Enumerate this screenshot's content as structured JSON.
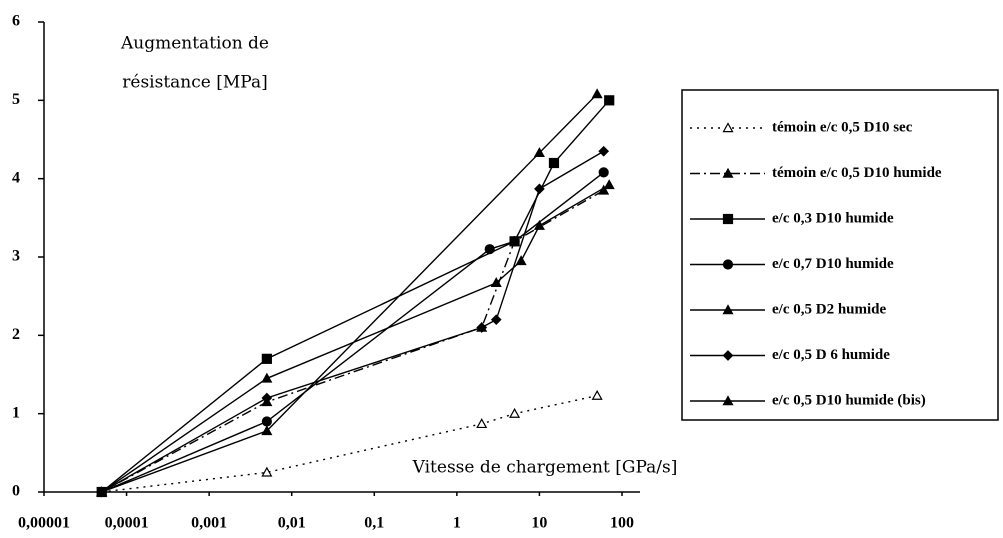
{
  "chart_data": {
    "type": "line",
    "ylabel": [
      "Augmentation de",
      "résistance [MPa]"
    ],
    "xlabel": "Vitesse de chargement [GPa/s]",
    "xscale": "log",
    "xlim": [
      1e-05,
      100
    ],
    "xticks": [
      {
        "value": 1e-05,
        "label": "0,00001"
      },
      {
        "value": 0.0001,
        "label": "0,0001"
      },
      {
        "value": 0.001,
        "label": "0,001"
      },
      {
        "value": 0.01,
        "label": "0,01"
      },
      {
        "value": 0.1,
        "label": "0,1"
      },
      1,
      10,
      100
    ],
    "ylim": [
      0,
      6
    ],
    "yticks": [
      0,
      1,
      2,
      3,
      4,
      5,
      6
    ],
    "legend": "right",
    "series": [
      {
        "name": "témoin e/c 0,5 D10 sec",
        "color": "#000000",
        "line_style": "dotted",
        "marker": "open-triangle",
        "x": [
          5e-05,
          0.005,
          2,
          5,
          50
        ],
        "values": [
          0,
          0.25,
          0.87,
          1.0,
          1.23
        ]
      },
      {
        "name": "témoin e/c 0,5 D10 humide",
        "color": "#000000",
        "line_style": "dashdot",
        "marker": "triangle",
        "x": [
          5e-05,
          0.005,
          2,
          5,
          60
        ],
        "values": [
          0,
          1.15,
          2.1,
          3.2,
          3.85
        ]
      },
      {
        "name": "e/c 0,3 D10 humide",
        "color": "#000000",
        "line_style": "solid",
        "marker": "square",
        "x": [
          5e-05,
          0.005,
          5,
          15,
          70
        ],
        "values": [
          0,
          1.7,
          3.2,
          4.2,
          5.0
        ]
      },
      {
        "name": "e/c 0,7 D10 humide",
        "color": "#000000",
        "line_style": "solid",
        "marker": "circle",
        "x": [
          5e-05,
          0.005,
          2.5,
          5,
          60
        ],
        "values": [
          0,
          0.9,
          3.1,
          3.2,
          4.08
        ]
      },
      {
        "name": "e/c 0,5 D2 humide",
        "color": "#000000",
        "line_style": "solid",
        "marker": "triangle",
        "x": [
          5e-05,
          0.005,
          10,
          50
        ],
        "values": [
          0,
          0.78,
          4.33,
          5.08
        ]
      },
      {
        "name": "e/c 0,5 D 6 humide",
        "color": "#000000",
        "line_style": "solid",
        "marker": "diamond",
        "x": [
          5e-05,
          0.005,
          2,
          3,
          10,
          60
        ],
        "values": [
          0,
          1.2,
          2.1,
          2.2,
          3.87,
          4.35
        ]
      },
      {
        "name": "e/c 0,5 D10 humide (bis)",
        "color": "#000000",
        "line_style": "solid",
        "marker": "triangle",
        "x": [
          5e-05,
          0.005,
          3,
          6,
          10,
          70
        ],
        "values": [
          0,
          1.45,
          2.67,
          2.95,
          3.4,
          3.92
        ]
      }
    ]
  }
}
